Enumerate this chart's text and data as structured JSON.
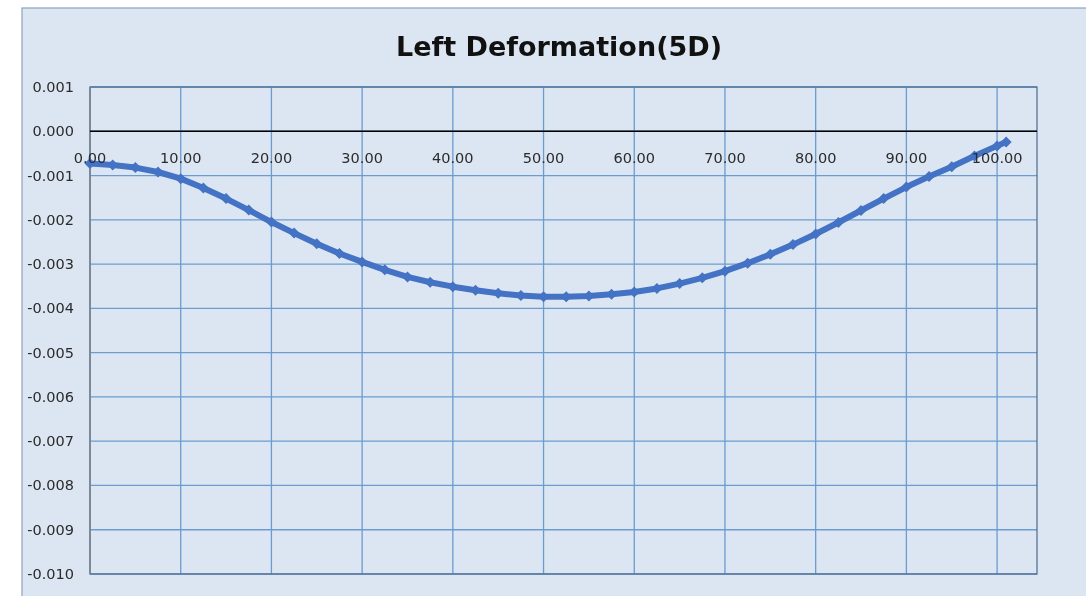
{
  "chart_data": {
    "type": "line",
    "title": "Left Deformation(5D)",
    "x": [
      0,
      2.5,
      5,
      7.5,
      10,
      12.5,
      15,
      17.5,
      20,
      22.5,
      25,
      27.5,
      30,
      32.5,
      35,
      37.5,
      40,
      42.5,
      45,
      47.5,
      50,
      52.5,
      55,
      57.5,
      60,
      62.5,
      65,
      67.5,
      70,
      72.5,
      75,
      77.5,
      80,
      82.5,
      85,
      87.5,
      90,
      92.5,
      95,
      97.5,
      100,
      101
    ],
    "series": [
      {
        "color": "#4472c4",
        "values": [
          -0.00073,
          -0.00076,
          -0.00082,
          -0.00092,
          -0.00107,
          -0.00128,
          -0.00152,
          -0.00178,
          -0.00205,
          -0.0023,
          -0.00254,
          -0.00276,
          -0.00295,
          -0.00313,
          -0.00329,
          -0.00341,
          -0.00351,
          -0.00359,
          -0.00366,
          -0.00371,
          -0.00374,
          -0.00374,
          -0.00372,
          -0.00368,
          -0.00363,
          -0.00355,
          -0.00344,
          -0.00331,
          -0.00316,
          -0.00298,
          -0.00278,
          -0.00256,
          -0.00232,
          -0.00206,
          -0.00179,
          -0.00152,
          -0.00126,
          -0.00102,
          -0.0008,
          -0.00056,
          -0.00033,
          -0.00024
        ]
      }
    ],
    "xlim": [
      0,
      104.4
    ],
    "ylim": [
      -0.01,
      0.001
    ],
    "xticks": [
      {
        "value": 0,
        "label": "0.00"
      },
      {
        "value": 10,
        "label": "10.00"
      },
      {
        "value": 20,
        "label": "20.00"
      },
      {
        "value": 30,
        "label": "30.00"
      },
      {
        "value": 40,
        "label": "40.00"
      },
      {
        "value": 50,
        "label": "50.00"
      },
      {
        "value": 60,
        "label": "60.00"
      },
      {
        "value": 70,
        "label": "70.00"
      },
      {
        "value": 80,
        "label": "80.00"
      },
      {
        "value": 90,
        "label": "90.00"
      },
      {
        "value": 100,
        "label": "100.00"
      }
    ],
    "yticks": [
      0.001,
      {
        "value": 0,
        "label": "0.000"
      },
      -0.001,
      -0.002,
      -0.003,
      -0.004,
      -0.005,
      -0.006,
      -0.007,
      -0.008,
      -0.009,
      {
        "value": -0.01,
        "label": "-0.010"
      }
    ],
    "grid": true,
    "marker": "diamond",
    "line_style": "solid"
  }
}
